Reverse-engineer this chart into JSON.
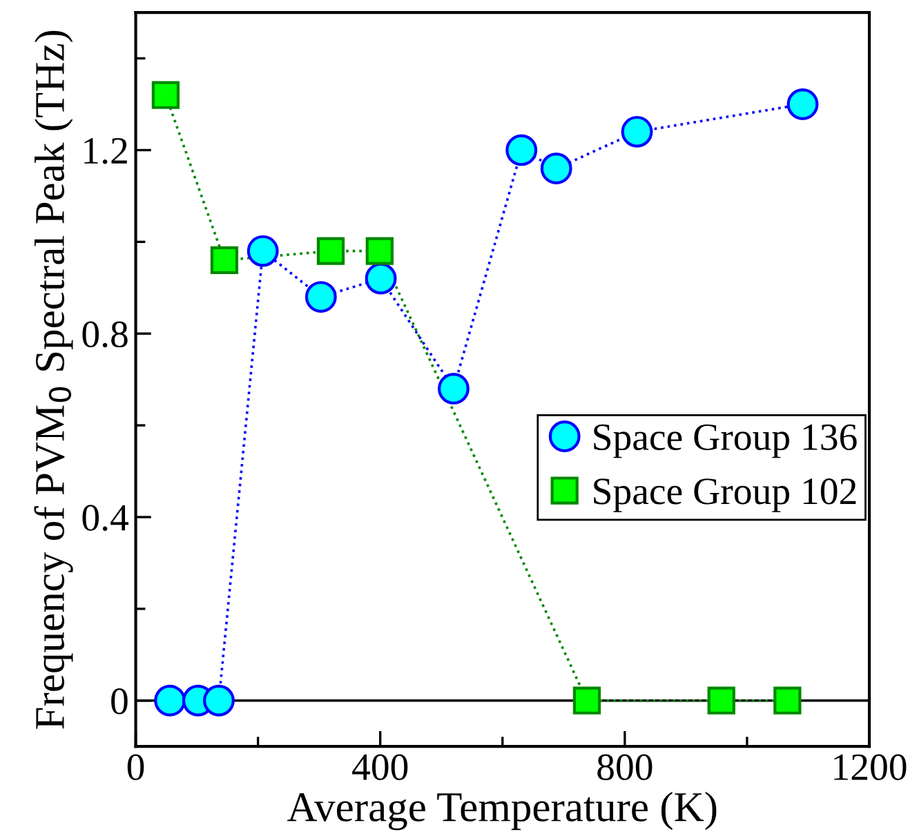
{
  "chart_data": {
    "type": "line",
    "xlabel": "Average Temperature (K)",
    "ylabel": "Frequency of PVM$_{0}$ Spectral Peak (THz)",
    "xlim": [
      0,
      1200
    ],
    "ylim": [
      -0.1,
      1.5
    ],
    "xticks": [
      0,
      {
        "value": 200,
        "label": null
      },
      400,
      {
        "value": 600,
        "label": null
      },
      800,
      {
        "value": 1000,
        "label": null
      },
      1200
    ],
    "yticks": [
      0,
      {
        "value": 0.2,
        "label": null
      },
      0.4,
      {
        "value": 0.6,
        "label": null
      },
      0.8,
      {
        "value": 1.0,
        "label": null
      },
      1.2,
      {
        "value": 1.4,
        "label": null
      }
    ],
    "grid": false,
    "legend": "right",
    "line_style": "dotted",
    "ref_lines": [
      {
        "axis": "y",
        "value": 0,
        "color": "#000000",
        "line_style": "solid"
      }
    ],
    "series": [
      {
        "name": "Space Group 136",
        "color": "#00ffff",
        "marker": "circle",
        "x": [
          56,
          102,
          136,
          208,
          303,
          401,
          520,
          631,
          688,
          820,
          1091
        ],
        "values": [
          0,
          0,
          0,
          0.98,
          0.88,
          0.92,
          0.68,
          1.2,
          1.16,
          1.24,
          1.3
        ]
      },
      {
        "name": "Space Group 102",
        "color": "#00ff00",
        "marker": "square",
        "x": [
          49,
          145,
          319,
          399,
          738,
          958,
          1066
        ],
        "values": [
          1.32,
          0.96,
          0.98,
          0.98,
          0,
          0,
          0
        ]
      }
    ]
  }
}
